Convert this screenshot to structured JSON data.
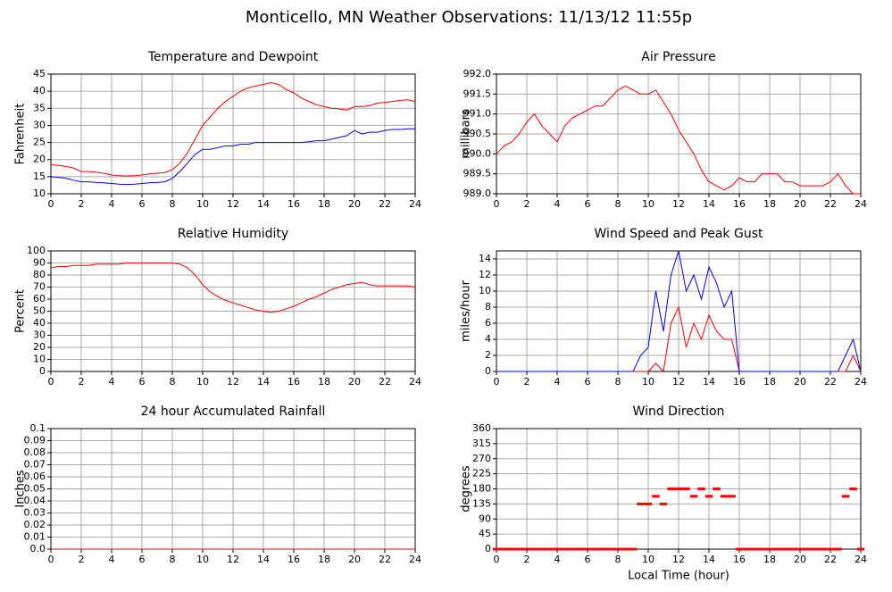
{
  "title": "Monticello, MN Weather Observations: 11/13/12 11:55p",
  "chart_data": [
    {
      "type": "line",
      "title": "Temperature and Dewpoint",
      "ylabel": "Fahrenheit",
      "grid": true,
      "x": [
        0,
        0.5,
        1,
        1.5,
        2,
        2.5,
        3,
        3.5,
        4,
        4.5,
        5,
        5.5,
        6,
        6.5,
        7,
        7.5,
        8,
        8.5,
        9,
        9.5,
        10,
        10.5,
        11,
        11.5,
        12,
        12.5,
        13,
        13.5,
        14,
        14.5,
        15,
        15.5,
        16,
        16.5,
        17,
        17.5,
        18,
        18.5,
        19,
        19.5,
        20,
        20.5,
        21,
        21.5,
        22,
        22.5,
        23,
        23.5,
        24
      ],
      "xlim": [
        0,
        24
      ],
      "xticks": [
        0,
        2,
        4,
        6,
        8,
        10,
        12,
        14,
        16,
        18,
        20,
        22,
        24
      ],
      "ylim": [
        10,
        45
      ],
      "yticks": [
        10,
        15,
        20,
        25,
        30,
        35,
        40,
        45
      ],
      "series": [
        {
          "color": "#ff0000",
          "values": [
            18.5,
            18.3,
            18,
            17.5,
            16.5,
            16.5,
            16.3,
            16,
            15.5,
            15.3,
            15.2,
            15.3,
            15.5,
            15.8,
            16,
            16.2,
            17,
            19,
            22,
            26,
            30,
            32.5,
            35,
            37,
            38.5,
            40,
            41,
            41.5,
            42,
            42.5,
            42,
            40.5,
            39.5,
            38,
            37,
            36,
            35.5,
            35,
            34.8,
            34.5,
            35.5,
            35.5,
            35.8,
            36.5,
            36.7,
            37,
            37.3,
            37.5,
            37
          ]
        },
        {
          "color": "#0000ff",
          "values": [
            15,
            14.8,
            14.5,
            14,
            13.5,
            13.5,
            13.3,
            13.2,
            13,
            12.8,
            12.7,
            12.8,
            13,
            13.2,
            13.3,
            13.5,
            14.5,
            16.5,
            19,
            21.5,
            23,
            23,
            23.5,
            24,
            24,
            24.5,
            24.5,
            25,
            25,
            25,
            25,
            25,
            25,
            25,
            25.2,
            25.5,
            25.5,
            26,
            26.5,
            27,
            28.5,
            27.5,
            28,
            28,
            28.5,
            28.8,
            28.8,
            29,
            29
          ]
        }
      ]
    },
    {
      "type": "line",
      "title": "Air Pressure",
      "ylabel": "millibars",
      "grid": true,
      "x": [
        0,
        0.5,
        1,
        1.5,
        2,
        2.5,
        3,
        3.5,
        4,
        4.5,
        5,
        5.5,
        6,
        6.5,
        7,
        7.5,
        8,
        8.5,
        9,
        9.5,
        10,
        10.5,
        11,
        11.5,
        12,
        12.5,
        13,
        13.5,
        14,
        14.5,
        15,
        15.5,
        16,
        16.5,
        17,
        17.5,
        18,
        18.5,
        19,
        19.5,
        20,
        20.5,
        21,
        21.5,
        22,
        22.5,
        23,
        23.5,
        24
      ],
      "xlim": [
        0,
        24
      ],
      "xticks": [
        0,
        2,
        4,
        6,
        8,
        10,
        12,
        14,
        16,
        18,
        20,
        22,
        24
      ],
      "ylim": [
        989,
        992
      ],
      "yticks": [
        {
          "value": 989,
          "label": "989.0"
        },
        989.5,
        {
          "value": 990,
          "label": "990.0"
        },
        990.5,
        {
          "value": 991,
          "label": "991.0"
        },
        991.5,
        {
          "value": 992,
          "label": "992.0"
        }
      ],
      "series": [
        {
          "color": "#ff0000",
          "values": [
            990.0,
            990.2,
            990.3,
            990.5,
            990.8,
            991.0,
            990.7,
            990.5,
            990.3,
            990.7,
            990.9,
            991.0,
            991.1,
            991.2,
            991.2,
            991.4,
            991.6,
            991.7,
            991.6,
            991.5,
            991.5,
            991.6,
            991.3,
            991.0,
            990.6,
            990.3,
            990.0,
            989.6,
            989.3,
            989.2,
            989.1,
            989.2,
            989.4,
            989.3,
            989.3,
            989.5,
            989.5,
            989.5,
            989.3,
            989.3,
            989.2,
            989.2,
            989.2,
            989.2,
            989.3,
            989.5,
            989.2,
            989.0,
            989.0
          ]
        }
      ]
    },
    {
      "type": "line",
      "title": "Relative Humidity",
      "ylabel": "Percent",
      "grid": true,
      "x": [
        0,
        0.5,
        1,
        1.5,
        2,
        2.5,
        3,
        3.5,
        4,
        4.5,
        5,
        5.5,
        6,
        6.5,
        7,
        7.5,
        8,
        8.5,
        9,
        9.5,
        10,
        10.5,
        11,
        11.5,
        12,
        12.5,
        13,
        13.5,
        14,
        14.5,
        15,
        15.5,
        16,
        16.5,
        17,
        17.5,
        18,
        18.5,
        19,
        19.5,
        20,
        20.5,
        21,
        21.5,
        22,
        22.5,
        23,
        23.5,
        24
      ],
      "xlim": [
        0,
        24
      ],
      "xticks": [
        0,
        2,
        4,
        6,
        8,
        10,
        12,
        14,
        16,
        18,
        20,
        22,
        24
      ],
      "ylim": [
        0,
        100
      ],
      "yticks": [
        0,
        10,
        20,
        30,
        40,
        50,
        60,
        70,
        80,
        90,
        100
      ],
      "series": [
        {
          "color": "#ff0000",
          "values": [
            86,
            87,
            87,
            88,
            88,
            88,
            89,
            89,
            89,
            89,
            90,
            90,
            90,
            90,
            90,
            90,
            90,
            89,
            86,
            80,
            72,
            66,
            62,
            59,
            57,
            55,
            53,
            51,
            50,
            49,
            50,
            52,
            54,
            57,
            60,
            62,
            65,
            68,
            70,
            72,
            73,
            74,
            72,
            71,
            71,
            71,
            71,
            71,
            70
          ]
        }
      ]
    },
    {
      "type": "line",
      "title": "Wind Speed and Peak Gust",
      "ylabel": "miles/hour",
      "grid": true,
      "x": [
        0,
        0.5,
        1,
        1.5,
        2,
        2.5,
        3,
        3.5,
        4,
        4.5,
        5,
        5.5,
        6,
        6.5,
        7,
        7.5,
        8,
        8.5,
        9,
        9.5,
        10,
        10.5,
        11,
        11.5,
        12,
        12.5,
        13,
        13.5,
        14,
        14.5,
        15,
        15.5,
        16,
        16.5,
        17,
        17.5,
        18,
        18.5,
        19,
        19.5,
        20,
        20.5,
        21,
        21.5,
        22,
        22.5,
        23,
        23.5,
        24
      ],
      "xlim": [
        0,
        24
      ],
      "xticks": [
        0,
        2,
        4,
        6,
        8,
        10,
        12,
        14,
        16,
        18,
        20,
        22,
        24
      ],
      "ylim": [
        0,
        15
      ],
      "yticks": [
        0,
        2,
        4,
        6,
        8,
        10,
        12,
        14
      ],
      "series": [
        {
          "color": "#ff0000",
          "values": [
            0,
            0,
            0,
            0,
            0,
            0,
            0,
            0,
            0,
            0,
            0,
            0,
            0,
            0,
            0,
            0,
            0,
            0,
            0,
            0,
            0,
            1,
            0,
            6,
            8,
            3,
            6,
            4,
            7,
            5,
            4,
            4,
            0,
            0,
            0,
            0,
            0,
            0,
            0,
            0,
            0,
            0,
            0,
            0,
            0,
            0,
            0,
            2,
            0
          ]
        },
        {
          "color": "#0000ff",
          "values": [
            0,
            0,
            0,
            0,
            0,
            0,
            0,
            0,
            0,
            0,
            0,
            0,
            0,
            0,
            0,
            0,
            0,
            0,
            0,
            2,
            3,
            10,
            5,
            12,
            15,
            10,
            12,
            9,
            13,
            11,
            8,
            10,
            0,
            0,
            0,
            0,
            0,
            0,
            0,
            0,
            0,
            0,
            0,
            0,
            0,
            0,
            2,
            4,
            0
          ]
        }
      ]
    },
    {
      "type": "line",
      "title": "24 hour Accumulated Rainfall",
      "ylabel": "Inches",
      "grid": true,
      "x": [
        0,
        24
      ],
      "xlim": [
        0,
        24
      ],
      "xticks": [
        0,
        2,
        4,
        6,
        8,
        10,
        12,
        14,
        16,
        18,
        20,
        22,
        24
      ],
      "ylim": [
        0,
        0.1
      ],
      "yticks": [
        {
          "value": 0,
          "label": "0.0"
        },
        0.01,
        0.02,
        0.03,
        0.04,
        0.05,
        0.06,
        0.07,
        0.08,
        0.09,
        0.1
      ],
      "series": [
        {
          "color": "#ff0000",
          "values": [
            0,
            0
          ]
        }
      ]
    },
    {
      "type": "scatter",
      "title": "Wind Direction",
      "ylabel": "degrees",
      "xlabel": "Local Time (hour)",
      "grid": true,
      "x": [
        0,
        0.5,
        1,
        1.5,
        2,
        2.5,
        3,
        3.5,
        4,
        4.5,
        5,
        5.5,
        6,
        6.5,
        7,
        7.5,
        8,
        8.5,
        9,
        9.5,
        10,
        10.5,
        11,
        11.5,
        12,
        12.5,
        13,
        13.5,
        14,
        14.5,
        15,
        15.5,
        16,
        16.5,
        17,
        17.5,
        18,
        18.5,
        19,
        19.5,
        20,
        20.5,
        21,
        21.5,
        22,
        22.5,
        23,
        23.5,
        24
      ],
      "xlim": [
        0,
        24
      ],
      "xticks": [
        0,
        2,
        4,
        6,
        8,
        10,
        12,
        14,
        16,
        18,
        20,
        22,
        24
      ],
      "ylim": [
        0,
        360
      ],
      "yticks": [
        0,
        45,
        90,
        135,
        180,
        225,
        270,
        315,
        360
      ],
      "series": [
        {
          "color": "#ff0000",
          "values": [
            0,
            0,
            0,
            0,
            0,
            0,
            0,
            0,
            0,
            0,
            0,
            0,
            0,
            0,
            0,
            0,
            0,
            0,
            0,
            135,
            135,
            158,
            135,
            180,
            180,
            180,
            158,
            180,
            158,
            180,
            158,
            158,
            0,
            0,
            0,
            0,
            0,
            0,
            0,
            0,
            0,
            0,
            0,
            0,
            0,
            0,
            158,
            180,
            0
          ]
        }
      ]
    }
  ]
}
